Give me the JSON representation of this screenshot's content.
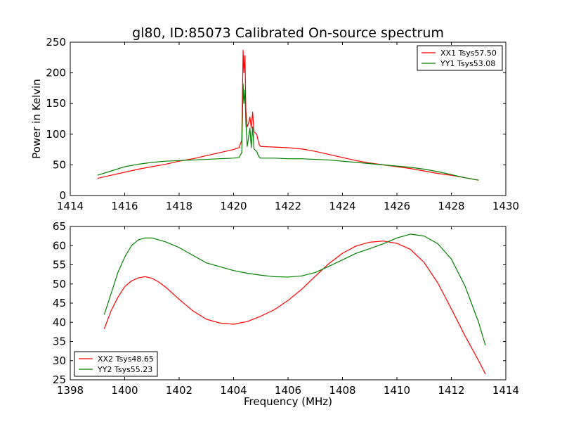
{
  "figure": {
    "title": "gl80, ID:85073 Calibrated On-source spectrum",
    "colors": {
      "red": "#ff0000",
      "green": "#008000"
    }
  },
  "chart_data": [
    {
      "type": "line",
      "title": "gl80, ID:85073 Calibrated On-source spectrum",
      "xlabel": "",
      "ylabel": "Power in Kelvin",
      "xlim": [
        1414,
        1430
      ],
      "ylim": [
        0,
        250
      ],
      "xticks": [
        "1414",
        "1416",
        "1418",
        "1420",
        "1422",
        "1424",
        "1426",
        "1428",
        "1430"
      ],
      "yticks": [
        "0",
        "50",
        "100",
        "150",
        "200",
        "250"
      ],
      "grid": false,
      "legend": "top-right",
      "series": [
        {
          "name": "XX1 Tsys57.50",
          "color": "#ff0000",
          "x": [
            1415.0,
            1415.5,
            1416.0,
            1416.5,
            1417.0,
            1417.5,
            1418.0,
            1418.5,
            1419.0,
            1419.5,
            1420.0,
            1420.2,
            1420.3,
            1420.35,
            1420.38,
            1420.42,
            1420.45,
            1420.5,
            1420.55,
            1420.6,
            1420.65,
            1420.7,
            1420.75,
            1420.8,
            1420.85,
            1420.9,
            1420.95,
            1421.0,
            1421.5,
            1422.0,
            1422.5,
            1423.0,
            1423.5,
            1424.0,
            1424.5,
            1425.0,
            1425.5,
            1426.0,
            1426.5,
            1427.0,
            1427.5,
            1428.0,
            1428.5,
            1429.0
          ],
          "y": [
            28,
            33,
            38,
            43,
            47,
            51,
            56,
            60,
            65,
            70,
            75,
            78,
            90,
            237,
            200,
            228,
            140,
            112,
            118,
            128,
            110,
            136,
            104,
            102,
            100,
            90,
            82,
            80,
            79,
            78,
            76,
            72,
            67,
            62,
            57,
            53,
            50,
            47,
            44,
            40,
            36,
            33,
            29,
            25
          ]
        },
        {
          "name": "YY1 Tsys53.08",
          "color": "#008000",
          "x": [
            1415.0,
            1415.5,
            1416.0,
            1416.5,
            1417.0,
            1417.5,
            1418.0,
            1418.5,
            1419.0,
            1419.5,
            1420.0,
            1420.2,
            1420.3,
            1420.35,
            1420.38,
            1420.42,
            1420.45,
            1420.5,
            1420.55,
            1420.6,
            1420.65,
            1420.7,
            1420.75,
            1420.8,
            1420.85,
            1420.9,
            1420.95,
            1421.0,
            1421.5,
            1422.0,
            1422.5,
            1423.0,
            1423.5,
            1424.0,
            1424.5,
            1425.0,
            1425.5,
            1426.0,
            1426.5,
            1427.0,
            1427.5,
            1428.0,
            1428.5,
            1429.0
          ],
          "y": [
            33,
            40,
            47,
            51,
            54,
            56,
            57,
            58,
            59,
            60,
            61,
            62,
            70,
            182,
            150,
            172,
            120,
            80,
            95,
            110,
            78,
            112,
            76,
            74,
            72,
            66,
            62,
            61,
            61,
            60,
            60,
            59,
            58,
            56,
            54,
            52,
            50,
            48,
            46,
            43,
            39,
            34,
            29,
            25
          ]
        }
      ]
    },
    {
      "type": "line",
      "title": "",
      "xlabel": "Frequency (MHz)",
      "ylabel": "",
      "xlim": [
        1398,
        1414
      ],
      "ylim": [
        25,
        65
      ],
      "xticks": [
        "1398",
        "1400",
        "1402",
        "1404",
        "1406",
        "1408",
        "1410",
        "1412",
        "1414"
      ],
      "yticks": [
        "25",
        "30",
        "35",
        "40",
        "45",
        "50",
        "55",
        "60",
        "65"
      ],
      "grid": false,
      "legend": "bottom-left",
      "series": [
        {
          "name": "XX2 Tsys48.65",
          "color": "#ff0000",
          "x": [
            1399.25,
            1399.5,
            1399.75,
            1400.0,
            1400.25,
            1400.5,
            1400.75,
            1401.0,
            1401.25,
            1401.5,
            1402.0,
            1402.5,
            1403.0,
            1403.5,
            1404.0,
            1404.5,
            1405.0,
            1405.5,
            1406.0,
            1406.5,
            1407.0,
            1407.5,
            1408.0,
            1408.5,
            1409.0,
            1409.5,
            1410.0,
            1410.5,
            1411.0,
            1411.5,
            1412.0,
            1412.5,
            1413.0,
            1413.25
          ],
          "y": [
            38.3,
            43,
            46.5,
            49.3,
            50.8,
            51.6,
            51.9,
            51.5,
            50.5,
            49.2,
            46,
            43,
            40.8,
            39.8,
            39.5,
            40.2,
            41.6,
            43.3,
            45.7,
            48.6,
            52,
            55.3,
            58,
            59.9,
            60.9,
            61.2,
            60.6,
            59,
            55.6,
            50.3,
            43.5,
            36.5,
            30,
            26.5
          ]
        },
        {
          "name": "YY2 Tsys55.23",
          "color": "#008000",
          "x": [
            1399.25,
            1399.5,
            1399.75,
            1400.0,
            1400.25,
            1400.5,
            1400.75,
            1401.0,
            1401.25,
            1401.5,
            1402.0,
            1402.5,
            1403.0,
            1403.5,
            1404.0,
            1404.5,
            1405.0,
            1405.5,
            1406.0,
            1406.5,
            1407.0,
            1407.5,
            1408.0,
            1408.5,
            1409.0,
            1409.5,
            1410.0,
            1410.5,
            1411.0,
            1411.5,
            1412.0,
            1412.5,
            1413.0,
            1413.25
          ],
          "y": [
            42,
            47.5,
            53,
            57,
            60,
            61.5,
            62,
            62,
            61.5,
            61,
            59.5,
            57.5,
            55.5,
            54.5,
            53.5,
            52.8,
            52.3,
            51.9,
            51.8,
            52.1,
            53,
            54.6,
            56.3,
            58,
            59.2,
            60.5,
            62,
            63,
            62.5,
            60.5,
            56.5,
            49.5,
            40,
            34
          ]
        }
      ]
    }
  ]
}
